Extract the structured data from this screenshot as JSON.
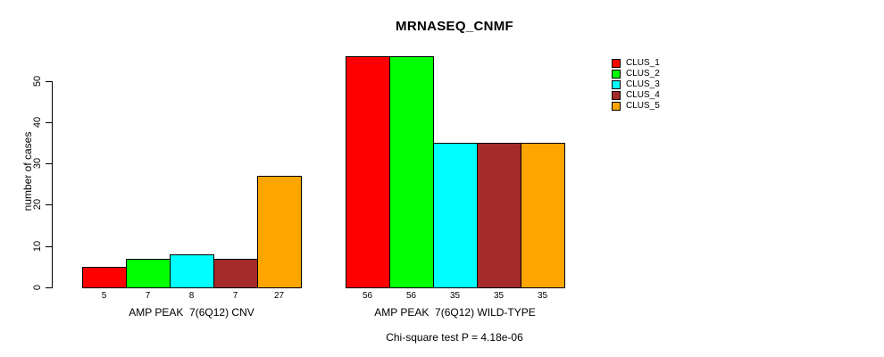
{
  "chart_data": {
    "type": "bar",
    "title": "MRNASEQ_CNMF",
    "xlabel": "",
    "ylabel": "number of cases",
    "categories": [
      "AMP PEAK  7(6Q12) CNV",
      "AMP PEAK  7(6Q12) WILD-TYPE"
    ],
    "series": [
      {
        "name": "CLUS_1",
        "color": "#FF0000",
        "values": [
          5,
          56
        ]
      },
      {
        "name": "CLUS_2",
        "color": "#00FF00",
        "values": [
          7,
          56
        ]
      },
      {
        "name": "CLUS_3",
        "color": "#00FFFF",
        "values": [
          8,
          35
        ]
      },
      {
        "name": "CLUS_4",
        "color": "#A52A2A",
        "values": [
          7,
          35
        ]
      },
      {
        "name": "CLUS_5",
        "color": "#FFA500",
        "values": [
          27,
          35
        ]
      }
    ],
    "bar_value_labels": [
      [
        "5",
        "7",
        "8",
        "7",
        "27"
      ],
      [
        "56",
        "56",
        "35",
        "35",
        "35"
      ]
    ],
    "yticks": [
      0,
      10,
      20,
      30,
      40,
      50
    ],
    "ylim": [
      0,
      58
    ],
    "grid": false,
    "legend_position": "top-right",
    "legend_entries": [
      "CLUS_1",
      "CLUS_2",
      "CLUS_3",
      "CLUS_4",
      "CLUS_5"
    ],
    "annotation": "Chi-square test P = 4.18e-06"
  },
  "colors": {
    "axis": "#000000",
    "text": "#000000",
    "background": "#FFFFFF"
  }
}
